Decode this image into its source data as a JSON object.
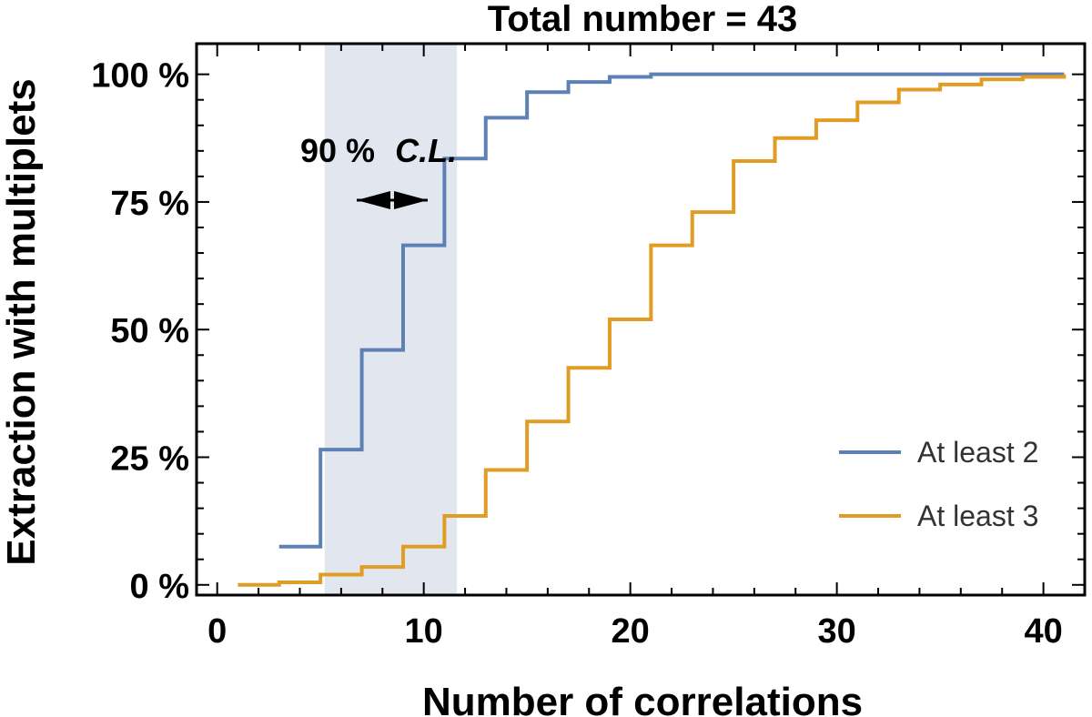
{
  "chart_data": {
    "type": "line",
    "step": true,
    "title": "Total number = 43",
    "xlabel": "Number of correlations",
    "ylabel": "Extraction with multiplets",
    "xlim": [
      -1,
      42
    ],
    "ylim": [
      -2,
      106
    ],
    "xticks": [
      0,
      10,
      20,
      30,
      40
    ],
    "xtick_labels": [
      "0",
      "10",
      "20",
      "30",
      "40"
    ],
    "yticks": [
      0,
      25,
      50,
      75,
      100
    ],
    "ytick_labels": [
      "0 %",
      "25 %",
      "50 %",
      "75 %",
      "100 %"
    ],
    "grid": false,
    "legend_position": "bottom-right",
    "annotation": {
      "text_main": "90 %",
      "text_italic": "C.L.",
      "x_range": [
        5.2,
        11.6
      ]
    },
    "series": [
      {
        "name": "At least 2",
        "color": "#5E81B5",
        "x": [
          3,
          5,
          7,
          9,
          11,
          13,
          15,
          17,
          19,
          21,
          41
        ],
        "y": [
          7.5,
          26.5,
          46,
          66.5,
          83.5,
          91.5,
          96.5,
          98.5,
          99.5,
          100,
          100
        ]
      },
      {
        "name": "At least 3",
        "color": "#E19C24",
        "x": [
          1,
          3,
          5,
          7,
          9,
          11,
          13,
          15,
          17,
          19,
          21,
          23,
          25,
          27,
          29,
          31,
          33,
          35,
          37,
          39,
          41
        ],
        "y": [
          0,
          0.5,
          2,
          3.5,
          7.5,
          13.5,
          22.5,
          32,
          42.5,
          52,
          66.5,
          73,
          83,
          87.5,
          91,
          94.5,
          97,
          98,
          99,
          99.5,
          100
        ]
      }
    ]
  }
}
